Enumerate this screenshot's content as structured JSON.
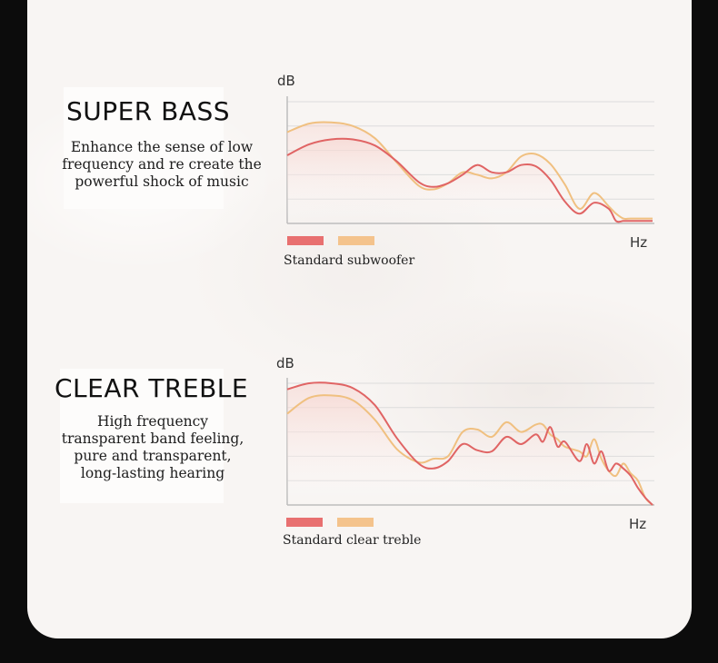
{
  "sections": [
    {
      "title": "SUPER BASS",
      "description": [
        "Enhance the sense of low",
        "frequency and re create the",
        "powerful shock of music"
      ],
      "y_unit": "dB",
      "x_unit": "Hz",
      "legend_caption": "Standard subwoofer"
    },
    {
      "title": "CLEAR TREBLE",
      "description": [
        "High frequency",
        "transparent band feeling,",
        "pure and transparent,",
        "long-lasting hearing"
      ],
      "y_unit": "dB",
      "x_unit": "Hz",
      "legend_caption": "Standard clear treble"
    }
  ],
  "colors": {
    "red_series": "#e06464",
    "orange_series": "#f0c080",
    "fill_tint": "#f6d2cc",
    "grid": "#dcdcdc",
    "axis": "#bdbdbd"
  },
  "chart_data": [
    {
      "type": "line",
      "title": "SUPER BASS",
      "xlabel": "Hz",
      "ylabel": "dB",
      "xlim": [
        0,
        100
      ],
      "ylim": [
        0,
        100
      ],
      "grid": true,
      "legend": "bottom-left",
      "series": [
        {
          "color": "red",
          "x": [
            0,
            6,
            12,
            18,
            24,
            30,
            36,
            40,
            44,
            48,
            52,
            56,
            60,
            64,
            68,
            72,
            76,
            80,
            84,
            88,
            90,
            92,
            94,
            96,
            98,
            100
          ],
          "y": [
            56,
            65,
            69,
            69,
            64,
            51,
            34,
            30,
            33,
            40,
            48,
            42,
            42,
            48,
            47,
            36,
            18,
            8,
            17,
            12,
            2,
            2,
            2,
            2,
            2,
            2
          ]
        },
        {
          "color": "orange",
          "x": [
            0,
            6,
            12,
            18,
            24,
            30,
            36,
            40,
            44,
            48,
            52,
            56,
            60,
            64,
            68,
            72,
            76,
            80,
            84,
            88,
            90,
            92,
            94,
            96,
            98,
            100
          ],
          "y": [
            75,
            82,
            83,
            80,
            70,
            50,
            31,
            28,
            33,
            42,
            40,
            37,
            42,
            55,
            57,
            49,
            32,
            12,
            25,
            14,
            8,
            4,
            4,
            4,
            4,
            4
          ]
        }
      ]
    },
    {
      "type": "line",
      "title": "CLEAR TREBLE",
      "xlabel": "Hz",
      "ylabel": "dB",
      "xlim": [
        0,
        100
      ],
      "ylim": [
        0,
        100
      ],
      "grid": true,
      "legend": "bottom-left",
      "series": [
        {
          "color": "red",
          "x": [
            0,
            6,
            12,
            18,
            24,
            30,
            36,
            40,
            44,
            48,
            52,
            56,
            60,
            64,
            68,
            70,
            72,
            74,
            76,
            80,
            82,
            84,
            86,
            88,
            90,
            92,
            94,
            96,
            98,
            100
          ],
          "y": [
            95,
            100,
            100,
            96,
            82,
            55,
            34,
            30,
            36,
            50,
            45,
            44,
            56,
            50,
            58,
            52,
            64,
            48,
            52,
            36,
            50,
            34,
            44,
            28,
            34,
            30,
            24,
            14,
            6,
            0
          ],
          "hidden_note": ""
        },
        {
          "color": "orange",
          "x": [
            0,
            6,
            12,
            18,
            24,
            30,
            36,
            40,
            44,
            48,
            52,
            56,
            60,
            64,
            68,
            70,
            72,
            74,
            76,
            80,
            82,
            84,
            86,
            88,
            90,
            92,
            94,
            96,
            98,
            100
          ],
          "y": [
            75,
            88,
            90,
            86,
            70,
            46,
            35,
            38,
            40,
            60,
            62,
            56,
            68,
            60,
            66,
            66,
            58,
            54,
            48,
            44,
            40,
            54,
            38,
            28,
            24,
            34,
            26,
            20,
            6,
            0
          ]
        }
      ]
    }
  ]
}
